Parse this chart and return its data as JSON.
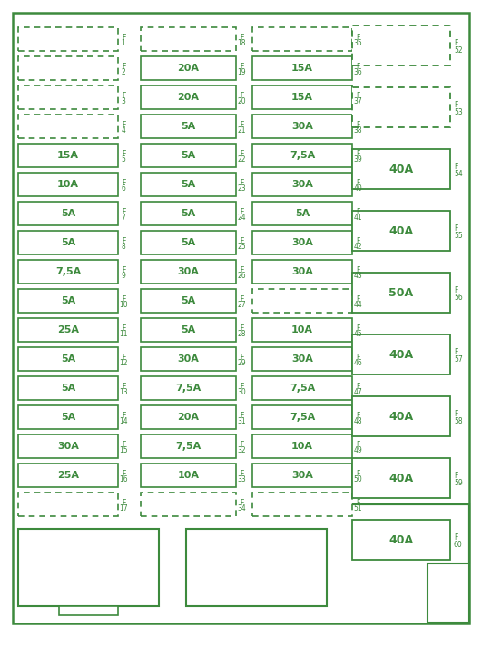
{
  "bg_color": "#ffffff",
  "gc": "#3d8a3d",
  "fig_width": 5.31,
  "fig_height": 7.13,
  "rows": [
    {
      "col1": {
        "label": "",
        "fuse": "F1",
        "dashed": true
      },
      "col2": {
        "label": "",
        "fuse": "F18",
        "dashed": true
      },
      "col3": {
        "label": "",
        "fuse": "F35",
        "dashed": true
      }
    },
    {
      "col1": {
        "label": "",
        "fuse": "F2",
        "dashed": true
      },
      "col2": {
        "label": "20A",
        "fuse": "F19",
        "dashed": false
      },
      "col3": {
        "label": "15A",
        "fuse": "F36",
        "dashed": false
      }
    },
    {
      "col1": {
        "label": "",
        "fuse": "F3",
        "dashed": true
      },
      "col2": {
        "label": "20A",
        "fuse": "F20",
        "dashed": false
      },
      "col3": {
        "label": "15A",
        "fuse": "F37",
        "dashed": false
      }
    },
    {
      "col1": {
        "label": "",
        "fuse": "F4",
        "dashed": true
      },
      "col2": {
        "label": "5A",
        "fuse": "F21",
        "dashed": false
      },
      "col3": {
        "label": "30A",
        "fuse": "F38",
        "dashed": false
      }
    },
    {
      "col1": {
        "label": "15A",
        "fuse": "F5",
        "dashed": false
      },
      "col2": {
        "label": "5A",
        "fuse": "F22",
        "dashed": false
      },
      "col3": {
        "label": "7,5A",
        "fuse": "F39",
        "dashed": false
      }
    },
    {
      "col1": {
        "label": "10A",
        "fuse": "F6",
        "dashed": false
      },
      "col2": {
        "label": "5A",
        "fuse": "F23",
        "dashed": false
      },
      "col3": {
        "label": "30A",
        "fuse": "F40",
        "dashed": false
      }
    },
    {
      "col1": {
        "label": "5A",
        "fuse": "F7",
        "dashed": false
      },
      "col2": {
        "label": "5A",
        "fuse": "F24",
        "dashed": false
      },
      "col3": {
        "label": "5A",
        "fuse": "F41",
        "dashed": false
      }
    },
    {
      "col1": {
        "label": "5A",
        "fuse": "F8",
        "dashed": false
      },
      "col2": {
        "label": "5A",
        "fuse": "F25",
        "dashed": false
      },
      "col3": {
        "label": "30A",
        "fuse": "F42",
        "dashed": false
      }
    },
    {
      "col1": {
        "label": "7,5A",
        "fuse": "F9",
        "dashed": false
      },
      "col2": {
        "label": "30A",
        "fuse": "F26",
        "dashed": false
      },
      "col3": {
        "label": "30A",
        "fuse": "F43",
        "dashed": false
      }
    },
    {
      "col1": {
        "label": "5A",
        "fuse": "F10",
        "dashed": false
      },
      "col2": {
        "label": "5A",
        "fuse": "F27",
        "dashed": false
      },
      "col3": {
        "label": "",
        "fuse": "F44",
        "dashed": true
      }
    },
    {
      "col1": {
        "label": "25A",
        "fuse": "F11",
        "dashed": false
      },
      "col2": {
        "label": "5A",
        "fuse": "F28",
        "dashed": false
      },
      "col3": {
        "label": "10A",
        "fuse": "F45",
        "dashed": false
      }
    },
    {
      "col1": {
        "label": "5A",
        "fuse": "F12",
        "dashed": false
      },
      "col2": {
        "label": "30A",
        "fuse": "F29",
        "dashed": false
      },
      "col3": {
        "label": "30A",
        "fuse": "F46",
        "dashed": false
      }
    },
    {
      "col1": {
        "label": "5A",
        "fuse": "F13",
        "dashed": false
      },
      "col2": {
        "label": "7,5A",
        "fuse": "F30",
        "dashed": false
      },
      "col3": {
        "label": "7,5A",
        "fuse": "F47",
        "dashed": false
      }
    },
    {
      "col1": {
        "label": "5A",
        "fuse": "F14",
        "dashed": false
      },
      "col2": {
        "label": "20A",
        "fuse": "F31",
        "dashed": false
      },
      "col3": {
        "label": "7,5A",
        "fuse": "F48",
        "dashed": false
      }
    },
    {
      "col1": {
        "label": "30A",
        "fuse": "F15",
        "dashed": false
      },
      "col2": {
        "label": "7,5A",
        "fuse": "F32",
        "dashed": false
      },
      "col3": {
        "label": "10A",
        "fuse": "F49",
        "dashed": false
      }
    },
    {
      "col1": {
        "label": "25A",
        "fuse": "F16",
        "dashed": false
      },
      "col2": {
        "label": "10A",
        "fuse": "F33",
        "dashed": false
      },
      "col3": {
        "label": "30A",
        "fuse": "F50",
        "dashed": false
      }
    },
    {
      "col1": {
        "label": "",
        "fuse": "F17",
        "dashed": true
      },
      "col2": {
        "label": "",
        "fuse": "F34",
        "dashed": true
      },
      "col3": {
        "label": "",
        "fuse": "F51",
        "dashed": true
      }
    }
  ],
  "right_fuses": [
    {
      "label": "",
      "fuse": "F52",
      "dashed": true
    },
    {
      "label": "",
      "fuse": "F53",
      "dashed": true
    },
    {
      "label": "40A",
      "fuse": "F54",
      "dashed": false
    },
    {
      "label": "40A",
      "fuse": "F55",
      "dashed": false
    },
    {
      "label": "50A",
      "fuse": "F56",
      "dashed": false
    },
    {
      "label": "40A",
      "fuse": "F57",
      "dashed": false
    },
    {
      "label": "40A",
      "fuse": "F58",
      "dashed": false
    },
    {
      "label": "40A",
      "fuse": "F59",
      "dashed": false
    },
    {
      "label": "40A",
      "fuse": "F60",
      "dashed": false
    }
  ]
}
